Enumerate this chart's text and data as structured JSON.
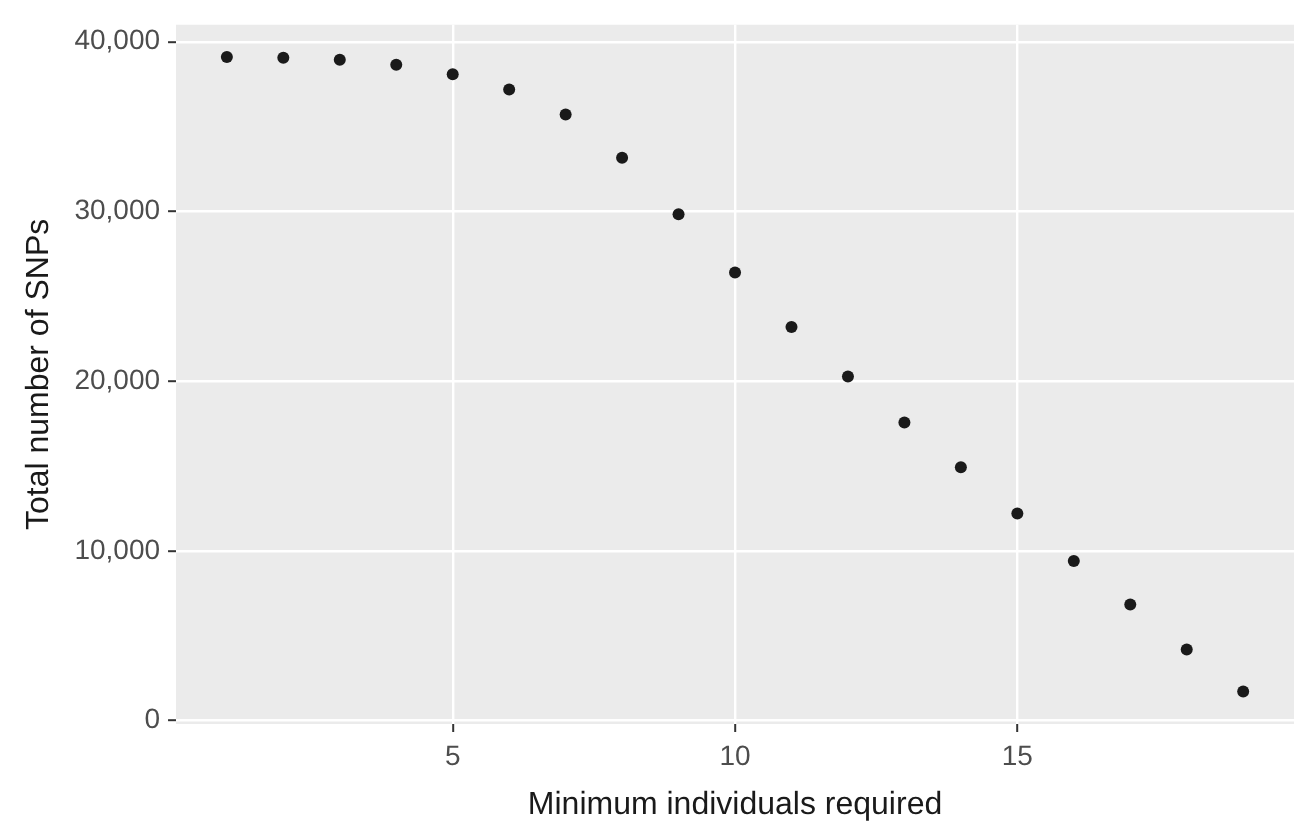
{
  "chart_data": {
    "type": "scatter",
    "xlabel": "Minimum individuals required",
    "ylabel": "Total number of SNPs",
    "x": [
      1,
      2,
      3,
      4,
      5,
      6,
      7,
      8,
      9,
      10,
      11,
      12,
      13,
      14,
      15,
      16,
      17,
      18,
      19
    ],
    "series": [
      {
        "color": "#1a1a1a",
        "values": [
          39100,
          39060,
          38940,
          38650,
          38080,
          37190,
          35720,
          33160,
          29830,
          26410,
          23190,
          20270,
          17570,
          14930,
          12210,
          9400,
          6840,
          4190,
          1710
        ]
      }
    ],
    "xlim": [
      0.1,
      19.9
    ],
    "xticks": [
      5,
      10,
      15
    ],
    "ylim": [
      -200,
      41000
    ],
    "yticks": [
      {
        "value": 0,
        "label": "0"
      },
      {
        "value": 10000,
        "label": "10,000"
      },
      {
        "value": 20000,
        "label": "20,000"
      },
      {
        "value": 30000,
        "label": "30,000"
      },
      {
        "value": 40000,
        "label": "40,000"
      }
    ],
    "grid": true,
    "legend": false,
    "marker": "circle"
  }
}
